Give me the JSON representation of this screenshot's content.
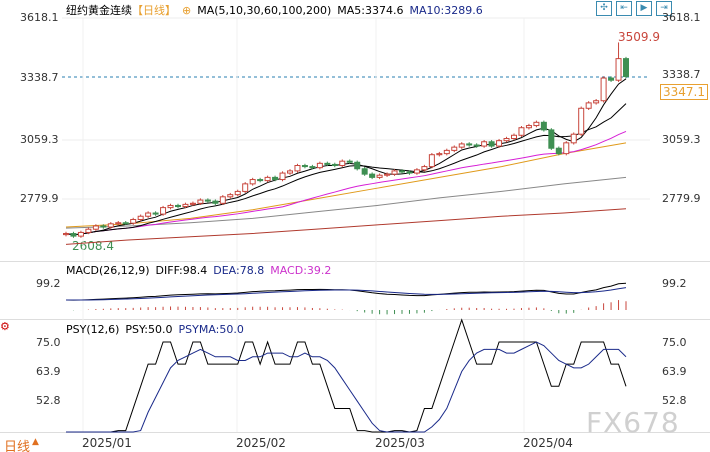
{
  "header": {
    "title": "纽约黄金连续",
    "period": "【日线】",
    "ma_params": "MA(5,10,30,60,100,200)",
    "ma5": "MA5:3374.6",
    "ma10": "MA10:3289.6"
  },
  "toolbar": {
    "buttons": [
      "crosshair",
      "jump-start",
      "play",
      "jump-end"
    ]
  },
  "price_axis": {
    "left": [
      "3618.1",
      "3338.7",
      "3059.3",
      "2779.9"
    ],
    "right": [
      "3618.1",
      "3338.7",
      "3059.3",
      "2779.9"
    ],
    "current": "3347.1",
    "high_label": "3509.9",
    "low_label": "2608.4"
  },
  "macd": {
    "title": "MACD(26,12,9)",
    "diff": "DIFF:98.4",
    "dea": "DEA:78.8",
    "macd": "MACD:39.2",
    "axis": "99.2"
  },
  "psy": {
    "title": "PSY(12,6)",
    "psy": "PSY:50.0",
    "psyma": "PSYMA:50.0",
    "axis": [
      "75.0",
      "63.9",
      "52.8"
    ]
  },
  "date_axis": [
    "2025/01",
    "2025/02",
    "2025/03",
    "2025/04"
  ],
  "period_button": "日线",
  "watermark": "FX678",
  "colors": {
    "up": "#c8463c",
    "down": "#3f8f52",
    "ma5": "#000000",
    "ma10": "#000000",
    "ma30": "#d61fd6",
    "ma60": "#e09a1a",
    "ma100": "#888888",
    "ma200": "#b03a2e",
    "dea": "#1a2a8a",
    "macd": "#cc33cc"
  },
  "chart_data": {
    "type": "candlestick",
    "ylim": [
      2530,
      3700
    ],
    "closes": [
      2620,
      2608,
      2625,
      2640,
      2655,
      2650,
      2665,
      2670,
      2668,
      2685,
      2700,
      2715,
      2710,
      2740,
      2750,
      2745,
      2755,
      2760,
      2775,
      2770,
      2760,
      2790,
      2800,
      2815,
      2850,
      2870,
      2865,
      2880,
      2870,
      2900,
      2910,
      2935,
      2930,
      2925,
      2945,
      2940,
      2935,
      2955,
      2950,
      2920,
      2895,
      2880,
      2890,
      2895,
      2910,
      2905,
      2900,
      2915,
      2930,
      2985,
      2990,
      3005,
      3020,
      3035,
      3030,
      3025,
      3045,
      3025,
      3050,
      3060,
      3075,
      3110,
      3120,
      3135,
      3100,
      3015,
      2990,
      3040,
      3080,
      3200,
      3225,
      3235,
      3340,
      3330,
      3430,
      3347
    ],
    "ma60": [
      2650,
      2665,
      2690,
      2730,
      2780,
      2830,
      2880,
      2930,
      2990,
      3040
    ],
    "ma100": [
      2645,
      2655,
      2670,
      2690,
      2720,
      2750,
      2785,
      2815,
      2850,
      2880
    ],
    "ma200": [
      2570,
      2590,
      2605,
      2620,
      2640,
      2660,
      2680,
      2700,
      2715,
      2735
    ]
  }
}
